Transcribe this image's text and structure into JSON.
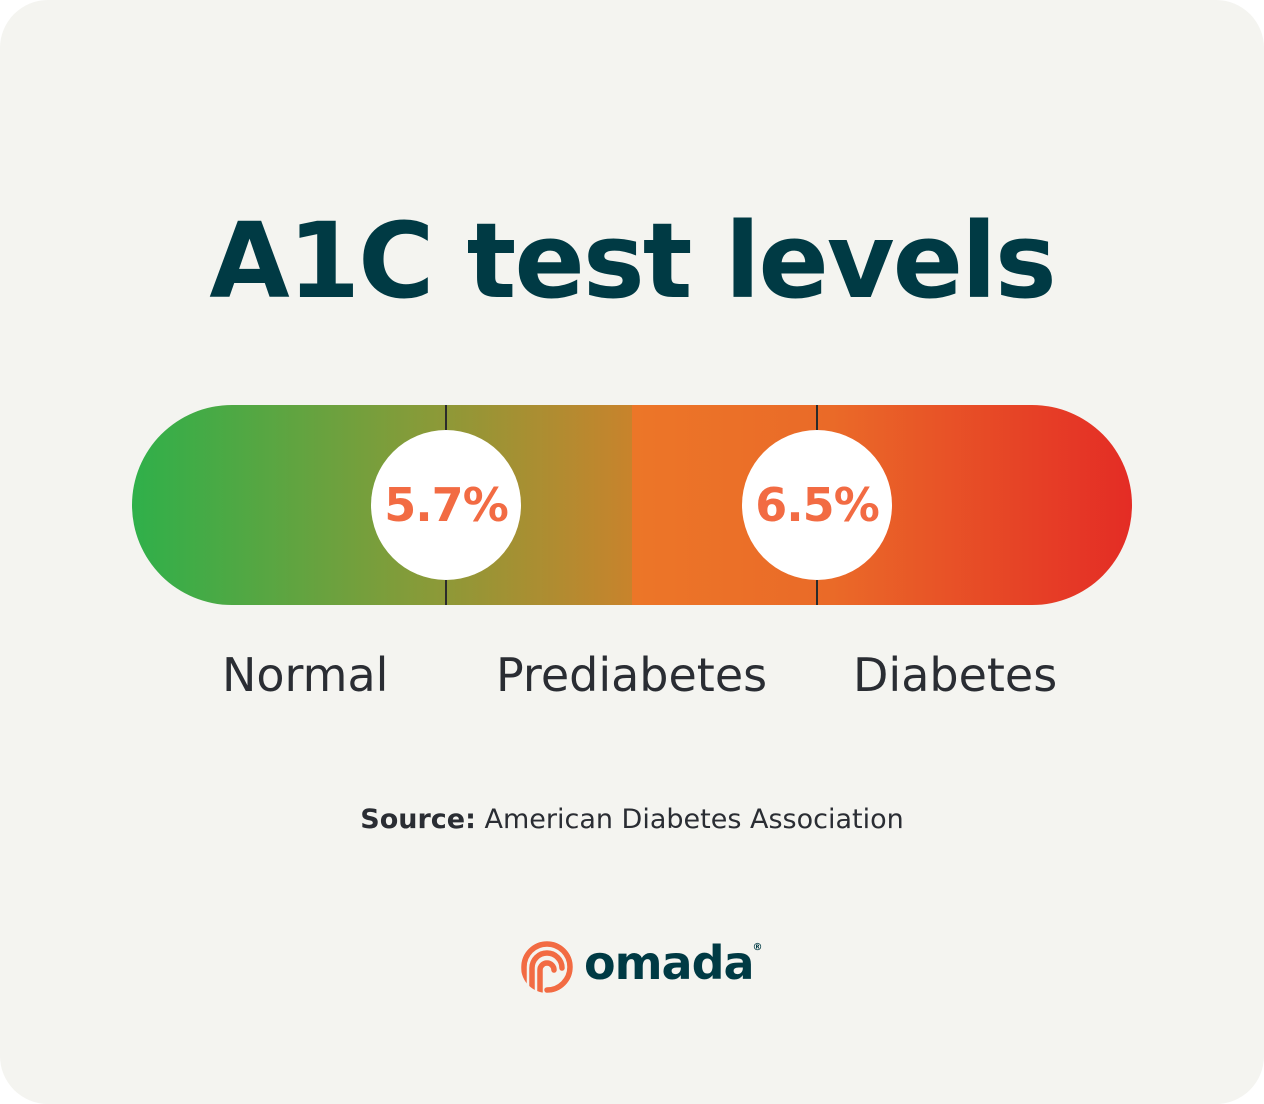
{
  "title": "A1C test levels",
  "thresholds": [
    {
      "value": "5.7%"
    },
    {
      "value": "6.5%"
    }
  ],
  "categories": [
    {
      "label": "Normal"
    },
    {
      "label": "Prediabetes"
    },
    {
      "label": "Diabetes"
    }
  ],
  "source": {
    "prefix": "Source:",
    "text": " American Diabetes Association"
  },
  "logo": {
    "word": "omada",
    "mark": "®"
  },
  "colors": {
    "green": "#2fb04a",
    "orange": "#ec7628",
    "red": "#e42c25",
    "title": "#003a44",
    "value": "#f26b43"
  }
}
